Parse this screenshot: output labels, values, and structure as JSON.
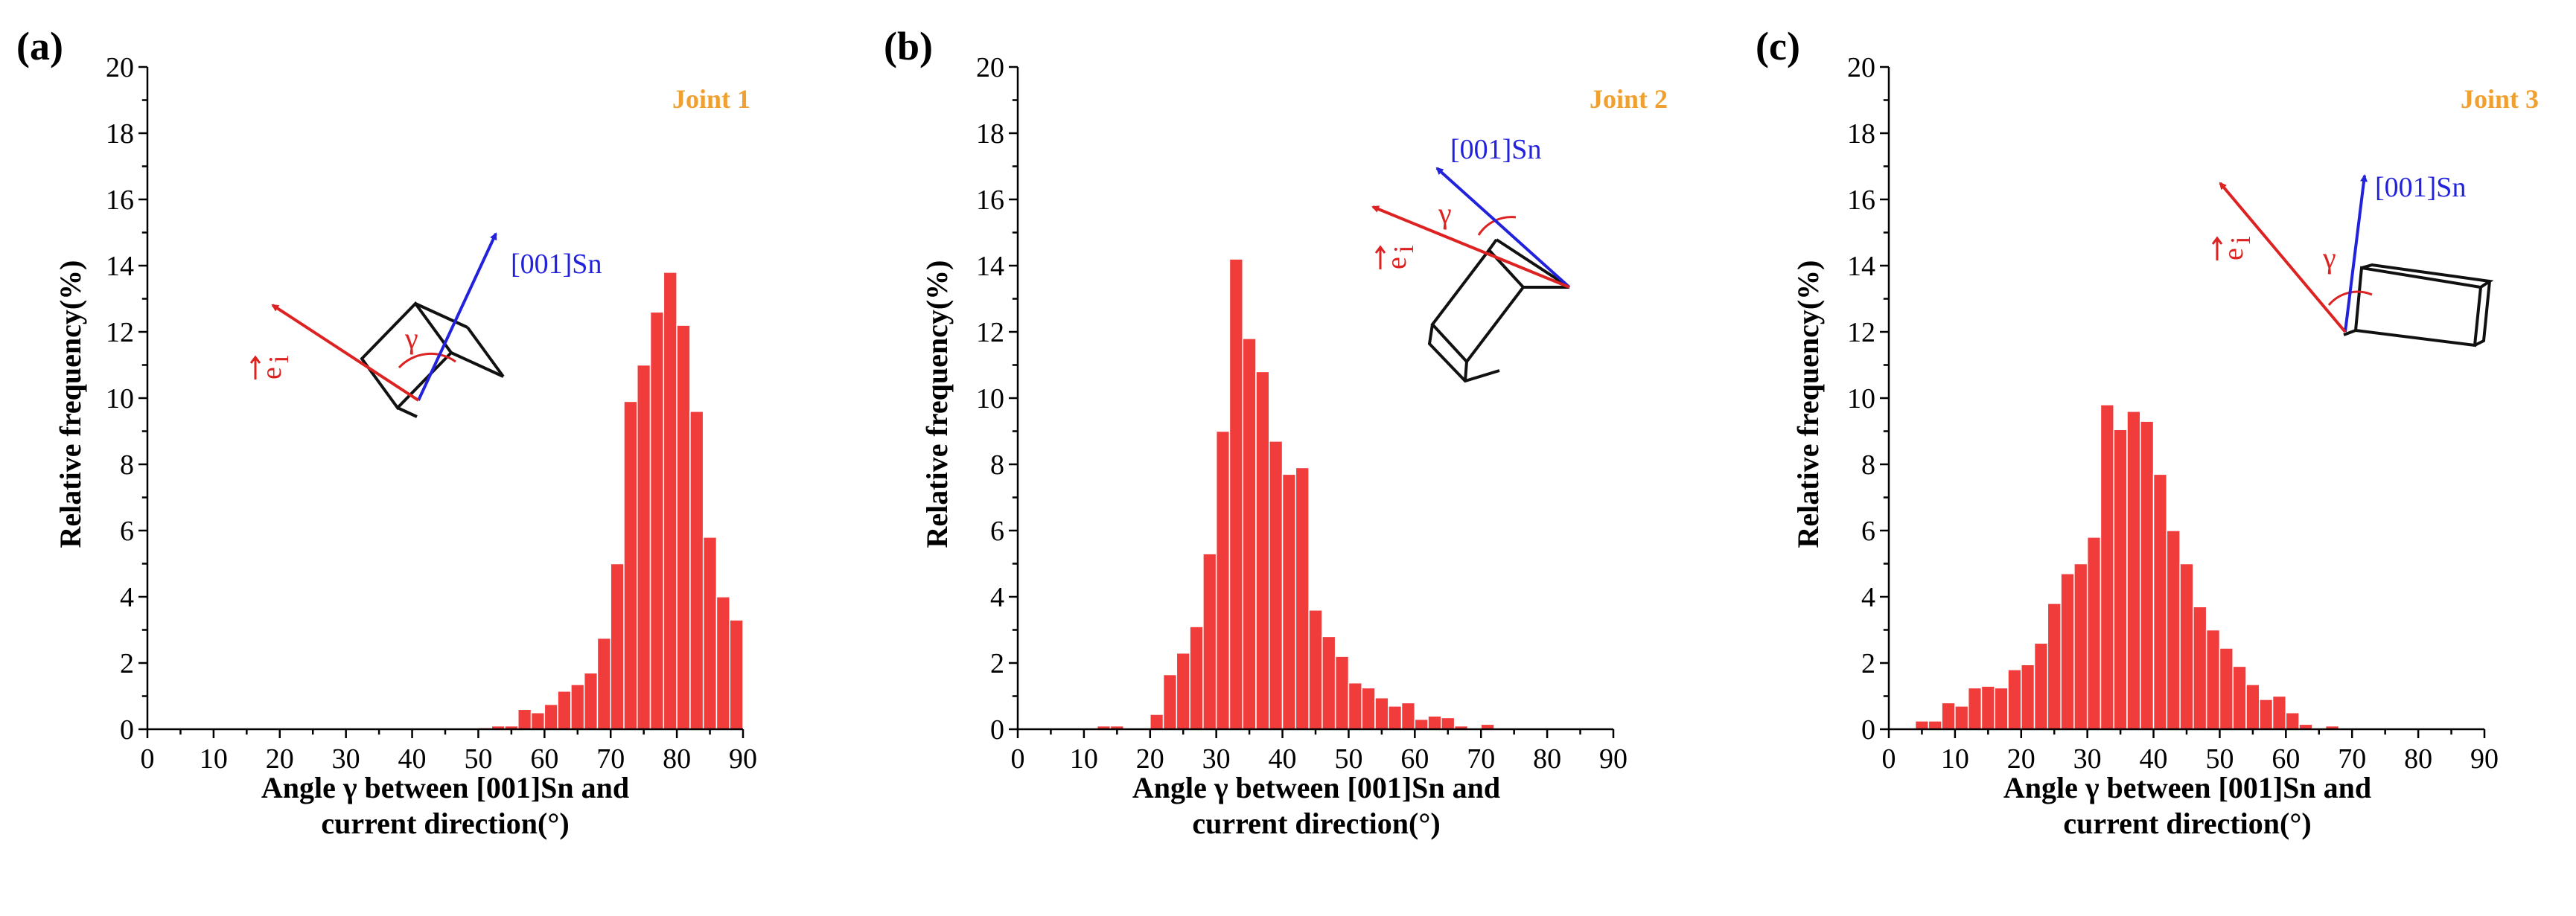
{
  "chart_data": [
    {
      "type": "bar",
      "panel_label": "(a)",
      "annotation": "Joint 1",
      "title": "",
      "xlabel": [
        "Angle γ between [001]Sn and",
        "current direction(°)"
      ],
      "ylabel": "Relative frequency(%)",
      "xlim": [
        0,
        90
      ],
      "ylim": [
        0,
        20
      ],
      "xticks": [
        0,
        10,
        20,
        30,
        40,
        50,
        60,
        70,
        80,
        90
      ],
      "yticks": [
        0,
        2,
        4,
        6,
        8,
        10,
        12,
        14,
        16,
        18,
        20
      ],
      "bin_width": 2,
      "bin_starts": [
        50,
        52,
        54,
        56,
        58,
        60,
        62,
        64,
        66,
        68,
        70,
        72,
        74,
        76,
        78,
        80,
        82,
        84,
        86,
        88
      ],
      "values": [
        0.05,
        0.1,
        0.1,
        0.6,
        0.5,
        0.75,
        1.15,
        1.35,
        1.7,
        2.75,
        5.0,
        9.9,
        11.0,
        12.6,
        13.8,
        12.2,
        9.6,
        5.8,
        4.0,
        3.3
      ],
      "inset": {
        "sn_label": "[001]Sn",
        "gamma_label": "γ",
        "e_label": "e",
        "e_subscript": "i"
      }
    },
    {
      "type": "bar",
      "panel_label": "(b)",
      "annotation": "Joint 2",
      "title": "",
      "xlabel": [
        "Angle γ between [001]Sn and",
        "current direction(°)"
      ],
      "ylabel": "Relative frequency(%)",
      "xlim": [
        0,
        90
      ],
      "ylim": [
        0,
        20
      ],
      "xticks": [
        0,
        10,
        20,
        30,
        40,
        50,
        60,
        70,
        80,
        90
      ],
      "yticks": [
        0,
        2,
        4,
        6,
        8,
        10,
        12,
        14,
        16,
        18,
        20
      ],
      "bin_width": 2,
      "bin_starts": [
        12,
        14,
        20,
        22,
        24,
        26,
        28,
        30,
        32,
        34,
        36,
        38,
        40,
        42,
        44,
        46,
        48,
        50,
        52,
        54,
        56,
        58,
        60,
        62,
        64,
        66,
        70
      ],
      "values": [
        0.1,
        0.1,
        0.45,
        1.65,
        2.3,
        3.1,
        5.3,
        9.0,
        14.2,
        11.8,
        10.8,
        8.7,
        7.7,
        7.9,
        3.6,
        2.8,
        2.2,
        1.4,
        1.25,
        0.95,
        0.7,
        0.8,
        0.3,
        0.4,
        0.35,
        0.1,
        0.15
      ],
      "inset": {
        "sn_label": "[001]Sn",
        "gamma_label": "γ",
        "e_label": "e",
        "e_subscript": "i"
      }
    },
    {
      "type": "bar",
      "panel_label": "(c)",
      "annotation": "Joint 3",
      "title": "",
      "xlabel": [
        "Angle γ between [001]Sn and",
        "current direction(°)"
      ],
      "ylabel": "Relative frequency(%)",
      "xlim": [
        0,
        90
      ],
      "ylim": [
        0,
        20
      ],
      "xticks": [
        0,
        10,
        20,
        30,
        40,
        50,
        60,
        70,
        80,
        90
      ],
      "yticks": [
        0,
        2,
        4,
        6,
        8,
        10,
        12,
        14,
        16,
        18,
        20
      ],
      "bin_width": 2,
      "bin_starts": [
        4,
        6,
        8,
        10,
        12,
        14,
        16,
        18,
        20,
        22,
        24,
        26,
        28,
        30,
        32,
        34,
        36,
        38,
        40,
        42,
        44,
        46,
        48,
        50,
        52,
        54,
        56,
        58,
        60,
        62,
        66
      ],
      "values": [
        0.25,
        0.25,
        0.8,
        0.7,
        1.25,
        1.3,
        1.25,
        1.8,
        1.95,
        2.6,
        3.8,
        4.7,
        5.0,
        5.8,
        9.8,
        9.05,
        9.6,
        9.3,
        7.7,
        6.0,
        5.0,
        3.7,
        3.0,
        2.45,
        1.9,
        1.35,
        0.9,
        1.0,
        0.5,
        0.15,
        0.1
      ],
      "inset": {
        "sn_label": "[001]Sn",
        "gamma_label": "γ",
        "e_label": "e",
        "e_subscript": "i"
      }
    }
  ]
}
